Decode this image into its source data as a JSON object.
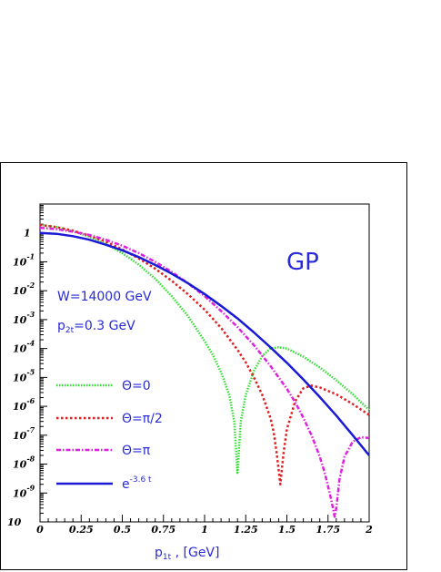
{
  "chart_data": {
    "type": "line",
    "title": "GP",
    "xlabel_main": "p",
    "xlabel_sub": "1t",
    "xlabel_unit": " , [GeV]",
    "xlim": [
      0,
      2
    ],
    "ylim": [
      1e-10,
      10
    ],
    "yscale": "log",
    "x_ticks": [
      "0",
      "0.25",
      "0.5",
      "0.75",
      "1",
      "1.25",
      "1.5",
      "1.75",
      "2"
    ],
    "y_ticks": [
      {
        "base": "10",
        "exp": "-9"
      },
      {
        "base": "10",
        "exp": "-8"
      },
      {
        "base": "10",
        "exp": "-7"
      },
      {
        "base": "10",
        "exp": "-6"
      },
      {
        "base": "10",
        "exp": "-5"
      },
      {
        "base": "10",
        "exp": "-4"
      },
      {
        "base": "10",
        "exp": "-3"
      },
      {
        "base": "10",
        "exp": "-2"
      },
      {
        "base": "10",
        "exp": "-1"
      },
      {
        "base": "1",
        "exp": ""
      }
    ],
    "annotations": {
      "energy": "W=14000 GeV",
      "p2t_main": "p",
      "p2t_sub": "2t",
      "p2t_value": "=0.3 GeV"
    },
    "series": [
      {
        "name": "Θ=0",
        "color": "#33dd33",
        "dash": "1.5,1.5",
        "x": [
          0,
          0.1,
          0.2,
          0.3,
          0.4,
          0.5,
          0.6,
          0.7,
          0.8,
          0.9,
          1.0,
          1.05,
          1.1,
          1.15,
          1.18,
          1.2,
          1.22,
          1.25,
          1.3,
          1.35,
          1.4,
          1.45,
          1.5,
          1.6,
          1.7,
          1.8,
          1.9,
          2.0
        ],
        "y": [
          1.9,
          1.6,
          1.15,
          0.75,
          0.42,
          0.2,
          0.08,
          0.026,
          0.0065,
          0.0013,
          0.00018,
          6e-05,
          1.5e-05,
          2.5e-06,
          3e-07,
          5e-09,
          3e-07,
          2.5e-06,
          1.7e-05,
          5.5e-05,
          0.0001,
          0.00011,
          0.0001,
          5.2e-05,
          2.2e-05,
          8e-06,
          2.6e-06,
          7.5e-07
        ]
      },
      {
        "name": "Θ=π/2",
        "color": "#e02020",
        "dash": "2.5,2.5",
        "x": [
          0,
          0.1,
          0.2,
          0.3,
          0.4,
          0.5,
          0.6,
          0.7,
          0.8,
          0.9,
          1.0,
          1.1,
          1.2,
          1.25,
          1.3,
          1.35,
          1.4,
          1.42,
          1.44,
          1.46,
          1.48,
          1.5,
          1.55,
          1.6,
          1.65,
          1.7,
          1.8,
          1.9,
          2.0
        ],
        "y": [
          1.9,
          1.6,
          1.2,
          0.8,
          0.5,
          0.27,
          0.13,
          0.058,
          0.022,
          0.0075,
          0.0022,
          0.00052,
          9e-05,
          3.3e-05,
          1e-05,
          2.5e-06,
          4e-07,
          1.3e-07,
          2e-08,
          2e-09,
          2.5e-08,
          1.6e-07,
          1.5e-06,
          4.2e-06,
          5.2e-06,
          4.5e-06,
          2.6e-06,
          1.2e-06,
          5e-07
        ]
      },
      {
        "name": "Θ=π",
        "color": "#dd22dd",
        "dash": "5,2,1.5,2",
        "x": [
          0,
          0.1,
          0.2,
          0.3,
          0.4,
          0.5,
          0.6,
          0.7,
          0.8,
          0.9,
          1.0,
          1.1,
          1.2,
          1.3,
          1.4,
          1.5,
          1.55,
          1.6,
          1.65,
          1.7,
          1.73,
          1.76,
          1.78,
          1.79,
          1.8,
          1.82,
          1.85,
          1.9,
          1.95,
          2.0
        ],
        "y": [
          1.5,
          1.35,
          1.1,
          0.85,
          0.58,
          0.36,
          0.2,
          0.1,
          0.045,
          0.018,
          0.0065,
          0.002,
          0.00055,
          0.00013,
          2.5e-05,
          4e-06,
          1.4e-06,
          4e-07,
          1e-07,
          1.8e-08,
          5e-09,
          1e-09,
          3e-10,
          1.5e-10,
          3e-10,
          3e-09,
          1.8e-08,
          6e-08,
          8.5e-08,
          8e-08
        ]
      },
      {
        "name": "e",
        "name_exp": "-3.6 t",
        "color": "#1a1ad6",
        "dash": "",
        "x": [
          0,
          0.1,
          0.2,
          0.3,
          0.4,
          0.5,
          0.6,
          0.7,
          0.8,
          0.9,
          1.0,
          1.1,
          1.2,
          1.3,
          1.4,
          1.5,
          1.6,
          1.7,
          1.8,
          1.9,
          2.0
        ],
        "y": [
          1.0,
          0.93,
          0.77,
          0.58,
          0.39,
          0.25,
          0.145,
          0.078,
          0.039,
          0.018,
          0.0077,
          0.003,
          0.0011,
          0.00036,
          0.00011,
          3.2e-05,
          8.5e-06,
          2.1e-06,
          4.8e-07,
          1e-07,
          2e-08
        ]
      }
    ]
  }
}
